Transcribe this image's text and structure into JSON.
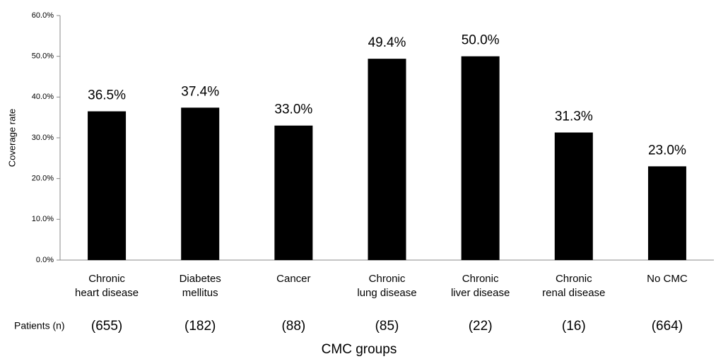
{
  "chart_data": {
    "type": "bar",
    "y_axis_label": "Coverage rate",
    "x_axis_label": "CMC groups",
    "categories": [
      "Chronic\nheart disease",
      "Diabetes\nmellitus",
      "Cancer",
      "Chronic\nlung disease",
      "Chronic\nliver disease",
      "Chronic\nrenal disease",
      "No CMC"
    ],
    "values": [
      36.5,
      37.4,
      33.0,
      49.4,
      50.0,
      31.3,
      23.0
    ],
    "value_labels": [
      "36.5%",
      "37.4%",
      "33.0%",
      "49.4%",
      "50.0%",
      "31.3%",
      "23.0%"
    ],
    "patients_label": "Patients (n)",
    "patient_counts": [
      "(655)",
      "(182)",
      "(88)",
      "(85)",
      "(22)",
      "(16)",
      "(664)"
    ],
    "color": "#000000",
    "ylim": [
      0,
      60
    ],
    "yticks": [
      {
        "value": 0,
        "label": "0.0%"
      },
      {
        "value": 10,
        "label": "10.0%"
      },
      {
        "value": 20,
        "label": "20.0%"
      },
      {
        "value": 30,
        "label": "30.0%"
      },
      {
        "value": 40,
        "label": "40.0%"
      },
      {
        "value": 50,
        "label": "50.0%"
      },
      {
        "value": 60,
        "label": "60.0%"
      }
    ],
    "grid": false
  }
}
